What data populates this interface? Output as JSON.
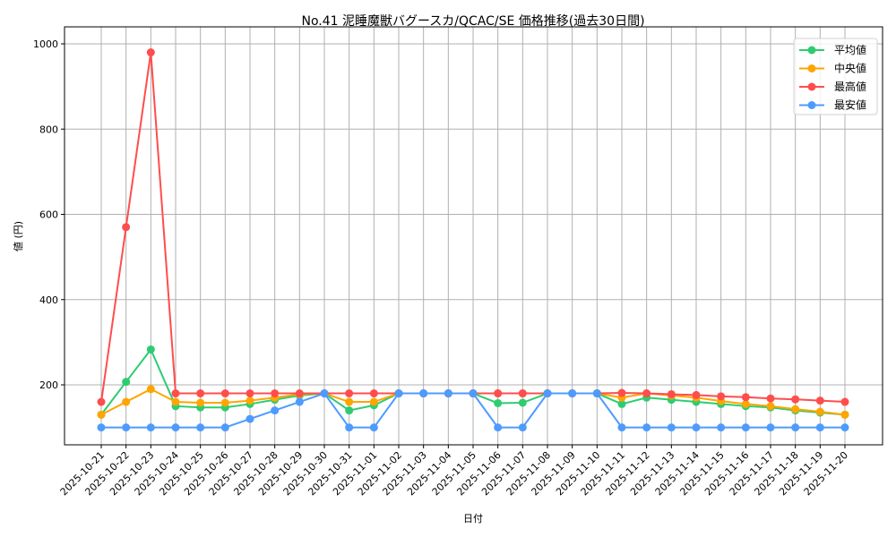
{
  "chart_data": {
    "type": "line",
    "title": "No.41 泥睡魔獣バグースカ/QCAC/SE 価格推移(過去30日間)",
    "xlabel": "日付",
    "ylabel": "値 (円)",
    "ylim": [
      55,
      1035
    ],
    "yticks": [
      200,
      400,
      600,
      800,
      1000
    ],
    "grid": true,
    "legend_position": "upper right",
    "x": [
      "2025-10-21",
      "2025-10-22",
      "2025-10-23",
      "2025-10-24",
      "2025-10-25",
      "2025-10-26",
      "2025-10-27",
      "2025-10-28",
      "2025-10-29",
      "2025-10-30",
      "2025-10-31",
      "2025-11-01",
      "2025-11-02",
      "2025-11-03",
      "2025-11-04",
      "2025-11-05",
      "2025-11-06",
      "2025-11-07",
      "2025-11-08",
      "2025-11-09",
      "2025-11-10",
      "2025-11-11",
      "2025-11-12",
      "2025-11-13",
      "2025-11-14",
      "2025-11-15",
      "2025-11-16",
      "2025-11-17",
      "2025-11-18",
      "2025-11-19",
      "2025-11-20"
    ],
    "series": [
      {
        "name": "平均値",
        "color": "#2ecc71",
        "values": [
          130,
          207,
          283,
          150,
          147,
          147,
          155,
          165,
          175,
          180,
          140,
          152,
          180,
          180,
          180,
          180,
          157,
          158,
          180,
          180,
          180,
          155,
          170,
          165,
          160,
          155,
          150,
          147,
          140,
          135,
          130
        ]
      },
      {
        "name": "中央値",
        "color": "#ffa500",
        "values": [
          130,
          160,
          190,
          160,
          158,
          158,
          163,
          170,
          178,
          180,
          160,
          160,
          180,
          180,
          180,
          180,
          180,
          180,
          180,
          180,
          180,
          170,
          180,
          175,
          170,
          162,
          155,
          150,
          143,
          137,
          130
        ]
      },
      {
        "name": "最高値",
        "color": "#ff4d4d",
        "values": [
          160,
          570,
          980,
          180,
          180,
          180,
          180,
          180,
          180,
          180,
          180,
          180,
          180,
          180,
          180,
          180,
          180,
          180,
          180,
          180,
          180,
          181,
          180,
          178,
          176,
          173,
          171,
          168,
          166,
          163,
          160
        ]
      },
      {
        "name": "最安値",
        "color": "#4d9bff",
        "values": [
          100,
          100,
          100,
          100,
          100,
          100,
          120,
          140,
          160,
          180,
          100,
          100,
          180,
          180,
          180,
          180,
          100,
          100,
          180,
          180,
          180,
          100,
          100,
          100,
          100,
          100,
          100,
          100,
          100,
          100,
          100
        ]
      }
    ]
  }
}
